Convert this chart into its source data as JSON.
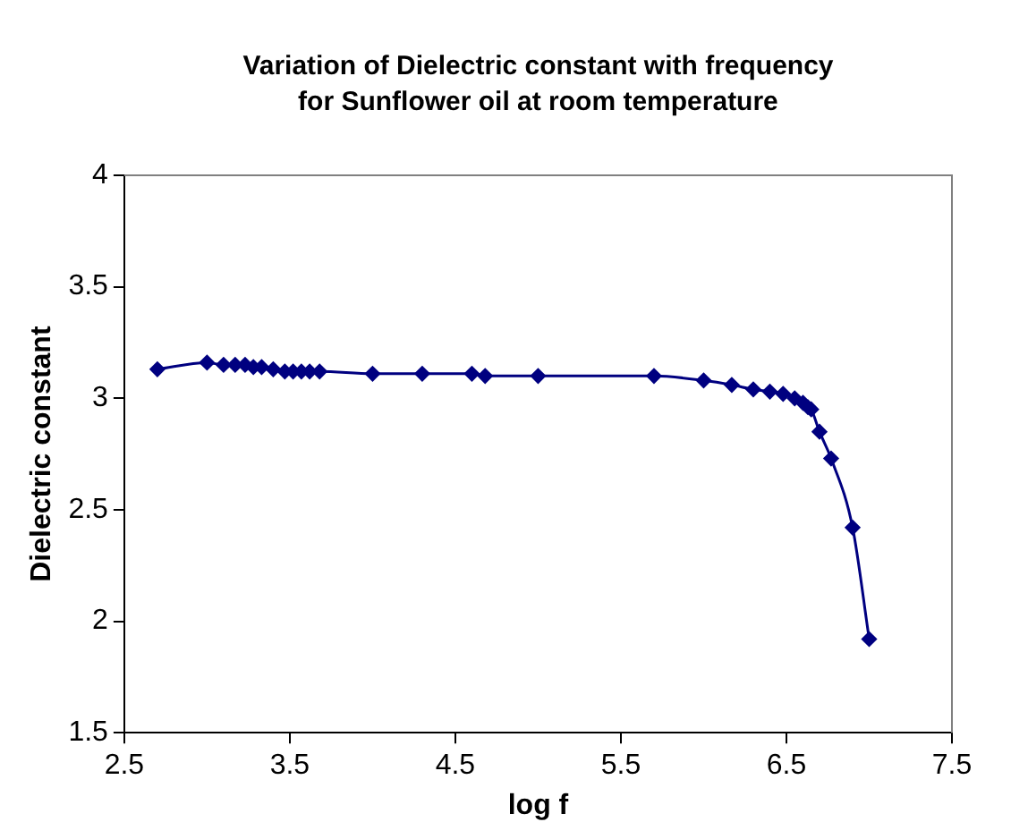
{
  "chart_data": {
    "type": "line",
    "title": "Variation of Dielectric constant with frequency for Sunflower oil at room temperature",
    "xlabel": "log f",
    "ylabel": "Dielectric constant",
    "x": [
      2.7,
      3.0,
      3.1,
      3.17,
      3.23,
      3.28,
      3.33,
      3.4,
      3.47,
      3.52,
      3.57,
      3.62,
      3.68,
      4.0,
      4.3,
      4.6,
      4.68,
      5.0,
      5.7,
      6.0,
      6.17,
      6.3,
      6.4,
      6.48,
      6.55,
      6.6,
      6.63,
      6.65,
      6.7,
      6.77,
      6.9,
      7.0
    ],
    "series": [
      {
        "color": "#000080",
        "values": [
          3.13,
          3.16,
          3.15,
          3.15,
          3.15,
          3.14,
          3.14,
          3.13,
          3.12,
          3.12,
          3.12,
          3.12,
          3.12,
          3.11,
          3.11,
          3.11,
          3.1,
          3.1,
          3.1,
          3.08,
          3.06,
          3.04,
          3.03,
          3.02,
          3.0,
          2.98,
          2.96,
          2.95,
          2.85,
          2.73,
          2.42,
          1.92
        ]
      }
    ],
    "xlim": [
      2.5,
      7.5
    ],
    "xticks": [
      2.5,
      3.5,
      4.5,
      5.5,
      6.5,
      7.5
    ],
    "ylim": [
      1.5,
      4
    ],
    "yticks": [
      1.5,
      2,
      2.5,
      3,
      3.5,
      4
    ],
    "grid": false,
    "legend": false,
    "marker": "diamond",
    "line_style": "solid"
  }
}
